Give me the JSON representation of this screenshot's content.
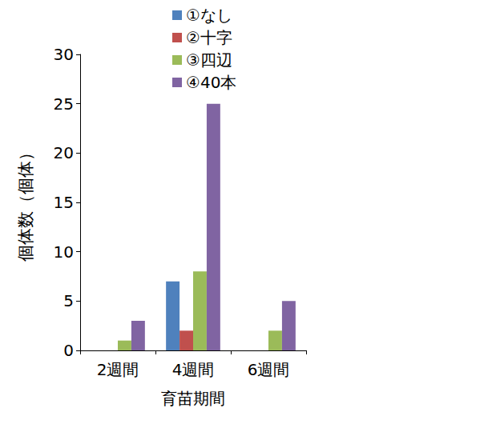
{
  "chart_data": {
    "type": "bar",
    "x_label": "育苗期間",
    "y_label": "個体数（個体）",
    "categories": [
      "2週間",
      "4週間",
      "6週間"
    ],
    "series": [
      {
        "name": "①なし",
        "color": "#4f81bd",
        "values": [
          0,
          7,
          0
        ]
      },
      {
        "name": "②十字",
        "color": "#c0504d",
        "values": [
          0,
          2,
          0
        ]
      },
      {
        "name": "③四辺",
        "color": "#9bbb59",
        "values": [
          1,
          8,
          2
        ]
      },
      {
        "name": "④40本",
        "color": "#8064a2",
        "values": [
          3,
          25,
          5
        ]
      }
    ],
    "ylim": [
      0,
      30
    ],
    "yticks": [
      0,
      5,
      10,
      15,
      20,
      25,
      30
    ],
    "grid": false,
    "legend": "top-right"
  }
}
